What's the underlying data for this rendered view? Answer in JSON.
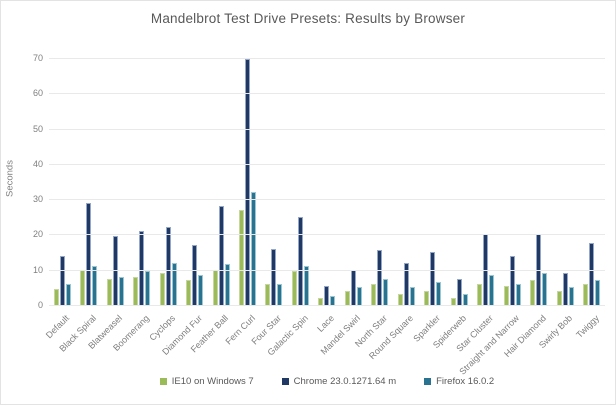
{
  "title": "Mandelbrot Test Drive Presets: Results by Browser",
  "chart_data": {
    "type": "bar",
    "title": "Mandelbrot Test Drive Presets: Results by Browser",
    "xlabel": "",
    "ylabel": "Seconds",
    "ylim": [
      0,
      70
    ],
    "ytick_interval": 10,
    "grid": true,
    "legend_position": "bottom",
    "categories": [
      "Default",
      "Black Spiral",
      "Blatweasel",
      "Boomerang",
      "Cyclops",
      "Diamond Fur",
      "Feather Ball",
      "Fern Curl",
      "Four Star",
      "Galactic Spin",
      "Lace",
      "Mandel Swirl",
      "North Star",
      "Round Square",
      "Sparkler",
      "Spiderweb",
      "Star Cluster",
      "Straight and Narrow",
      "Hair Diamond",
      "Swirly Bob",
      "Twiggy"
    ],
    "series": [
      {
        "name": "IE10 on Windows 7",
        "color": "#9bbb59",
        "border_color": "#c6d6a0",
        "values": [
          4.5,
          10,
          7.5,
          8,
          9,
          7,
          10,
          27,
          6,
          9.5,
          2,
          4,
          6,
          3,
          4,
          2,
          6,
          5.5,
          7,
          4,
          6
        ]
      },
      {
        "name": "Chrome 23.0.1271.64 m",
        "color": "#1f3864",
        "border_color": "#95a7c6",
        "values": [
          14,
          29,
          19.5,
          21,
          22,
          17,
          28,
          69.8,
          16,
          25,
          5.5,
          10,
          15.5,
          12,
          15,
          7.5,
          20,
          14,
          20,
          9,
          17.5
        ]
      },
      {
        "name": "Firefox 16.0.2",
        "color": "#2a7390",
        "border_color": "#9dc6d3",
        "values": [
          6,
          11,
          8,
          9.5,
          12,
          8.5,
          11.5,
          32,
          6,
          11,
          2.5,
          5,
          7.5,
          5,
          6.5,
          3,
          8.5,
          6,
          9,
          5,
          7
        ]
      }
    ]
  },
  "colors": {
    "title_text": "#595959",
    "axis_text": "#7f7f7f",
    "gridline": "#e9e9e9",
    "background": "#ffffff"
  }
}
